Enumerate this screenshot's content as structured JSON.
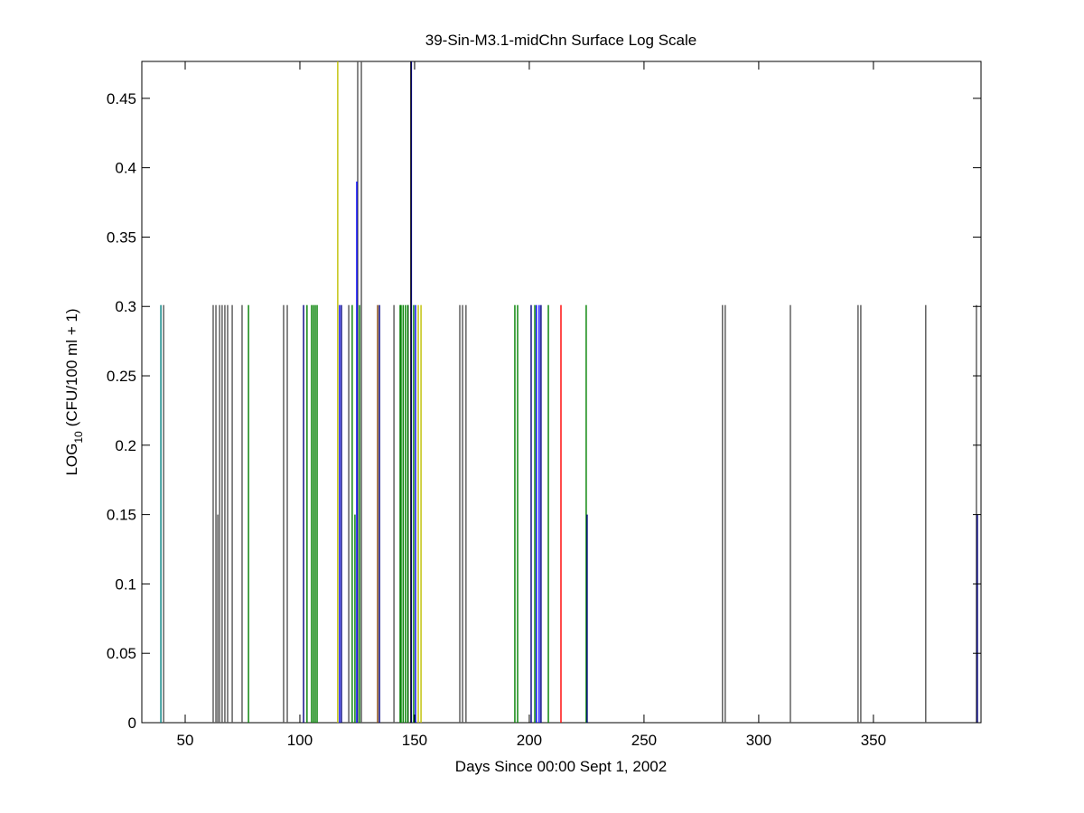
{
  "chart_data": {
    "type": "bar",
    "title": "39-Sin-M3.1-midChn Surface Log Scale",
    "x_label": "Days Since 00:00 Sept 1, 2002",
    "y_label": {
      "main": "LOG",
      "subscript": "10",
      "rest": "(CFU/100 ml + 1)"
    },
    "xlim": [
      31.1,
      396.9
    ],
    "ylim": [
      0,
      0.4766
    ],
    "xticks": [
      50,
      100,
      150,
      200,
      250,
      300,
      350
    ],
    "yticks": [
      0,
      0.05,
      0.1,
      0.15,
      0.2,
      0.25,
      0.3,
      0.35,
      0.4,
      0.45
    ],
    "grid": false,
    "series": [
      {
        "color": "#555555",
        "x": [
          40.6,
          62.2,
          63.4,
          65.0,
          66.1,
          67.3,
          68.5,
          70.5,
          74.8,
          92.9,
          94.5,
          121.3,
          141.0,
          147.2,
          169.7,
          170.9,
          172.4,
          284.2,
          285.4,
          313.8,
          343.3,
          344.5,
          372.8,
          394.9,
          125.2,
          126.8,
          64.2
        ],
        "values": [
          0.301,
          0.301,
          0.301,
          0.301,
          0.301,
          0.301,
          0.301,
          0.301,
          0.301,
          0.301,
          0.301,
          0.301,
          0.301,
          0.301,
          0.301,
          0.301,
          0.301,
          0.301,
          0.301,
          0.301,
          0.301,
          0.301,
          0.301,
          0.301,
          0.477,
          0.477,
          0.15
        ]
      },
      {
        "color": "#008080",
        "x": [
          39.4
        ],
        "values": [
          0.301
        ]
      },
      {
        "color": "#008000",
        "x": [
          77.6,
          103.1,
          105.1,
          105.9,
          106.7,
          107.5,
          122.8,
          126.0,
          143.7,
          144.1,
          145.0,
          146.0,
          147.0,
          149.6,
          193.7,
          194.9,
          202.4,
          208.3,
          224.8,
          124.0
        ],
        "values": [
          0.301,
          0.301,
          0.301,
          0.301,
          0.301,
          0.301,
          0.301,
          0.301,
          0.301,
          0.301,
          0.301,
          0.301,
          0.301,
          0.301,
          0.301,
          0.301,
          0.301,
          0.301,
          0.301,
          0.15
        ]
      },
      {
        "color": "#000080",
        "x": [
          101.6,
          118.1,
          134.7,
          200.8,
          205.1,
          225.2,
          395.3
        ],
        "values": [
          0.301,
          0.301,
          0.301,
          0.301,
          0.301,
          0.15,
          0.15
        ]
      },
      {
        "color": "#0000ff",
        "x": [
          117.3,
          150.4,
          203.1,
          204.3,
          124.8,
          148.6
        ],
        "values": [
          0.301,
          0.301,
          0.301,
          0.301,
          0.39,
          0.477
        ]
      },
      {
        "color": "#000000",
        "x": [
          148.4
        ],
        "values": [
          0.477
        ]
      },
      {
        "color": "#bfbf00",
        "x": [
          116.5,
          151.6,
          152.8
        ],
        "values": [
          0.477,
          0.301,
          0.301
        ]
      },
      {
        "color": "#ff0000",
        "x": [
          213.8
        ],
        "values": [
          0.301
        ]
      },
      {
        "color": "#804000",
        "x": [
          133.9
        ],
        "values": [
          0.301
        ]
      }
    ]
  }
}
